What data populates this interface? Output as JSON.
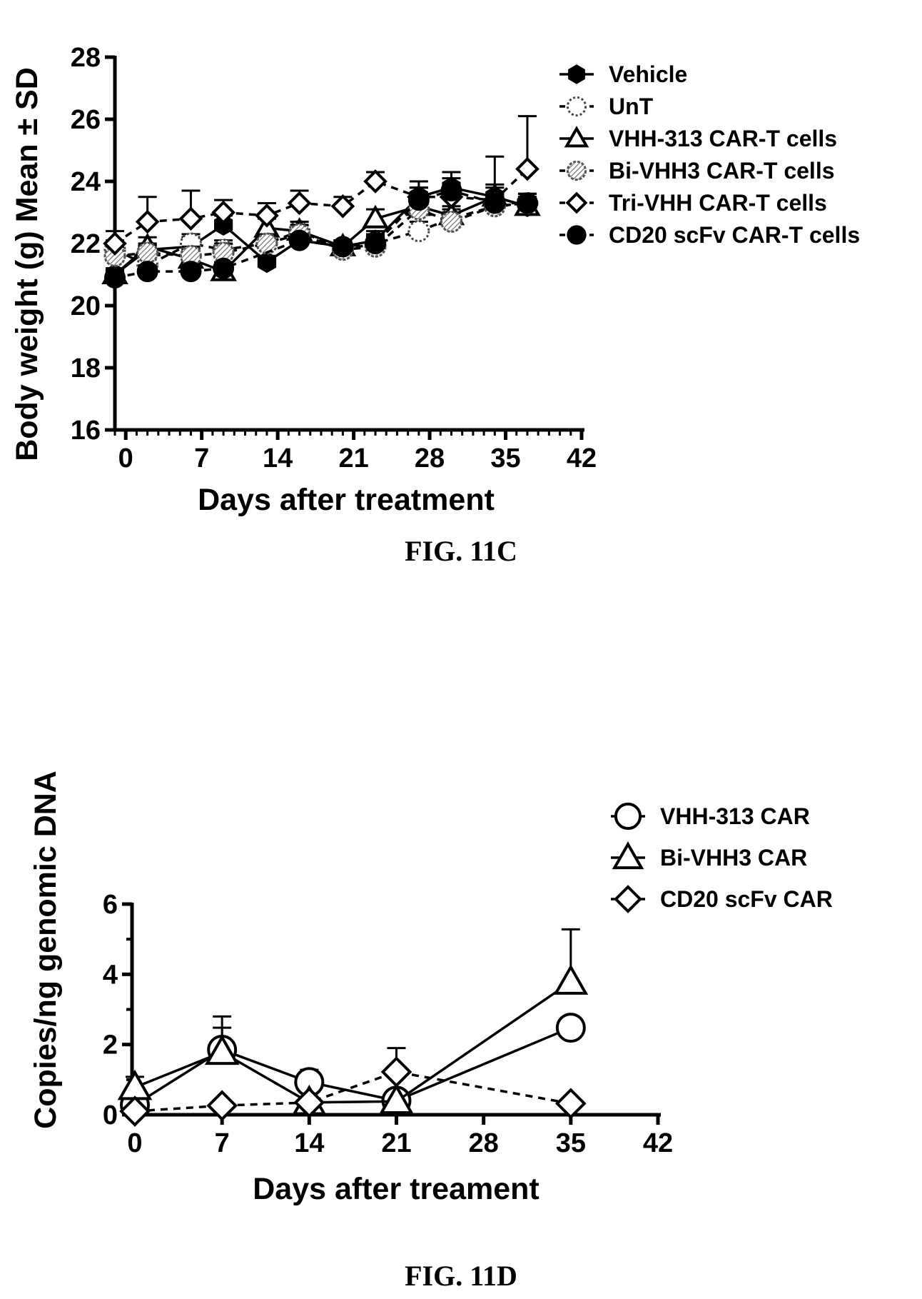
{
  "chart_data": [
    {
      "type": "line",
      "xlabel": "Days after treatment",
      "ylabel": "Body weight (g) Mean ± SD",
      "caption": "FIG. 11C",
      "xlim": [
        -1,
        42
      ],
      "ylim": [
        16,
        28
      ],
      "xticks": [
        "0",
        "7",
        "14",
        "21",
        "28",
        "35",
        "42"
      ],
      "yticks": [
        "16",
        "18",
        "20",
        "22",
        "24",
        "26",
        "28"
      ],
      "legend_position": "top-right",
      "series": [
        {
          "name": "Vehicle",
          "marker": "hexagon-filled",
          "dash": false,
          "x": [
            -1,
            2,
            6,
            9,
            13,
            16,
            20,
            23,
            27,
            30,
            34,
            37
          ],
          "y": [
            21.0,
            21.8,
            21.9,
            22.6,
            21.4,
            22.1,
            21.9,
            22.1,
            23.5,
            23.8,
            23.5,
            23.2
          ],
          "err": [
            0.2,
            0.2,
            0.3,
            0.3,
            0.2,
            0.2,
            0.2,
            0.3,
            0.3,
            0.5,
            0.3,
            0.3
          ]
        },
        {
          "name": "UnT",
          "marker": "circle-dotted",
          "dash": true,
          "x": [
            -1,
            2,
            6,
            9,
            13,
            16,
            20,
            23,
            27,
            30,
            34,
            37
          ],
          "y": [
            21.8,
            21.3,
            22.0,
            21.8,
            22.0,
            22.4,
            21.8,
            22.0,
            22.4,
            22.8,
            23.2,
            23.3
          ],
          "err": [
            0.3,
            0.3,
            0.3,
            0.3,
            0.3,
            0.3,
            0.3,
            0.3,
            0.3,
            0.3,
            0.3,
            0.3
          ]
        },
        {
          "name": "VHH-313 CAR-T cells",
          "marker": "triangle-open",
          "dash": false,
          "x": [
            -1,
            2,
            6,
            9,
            13,
            16,
            20,
            23,
            27,
            30,
            34,
            37
          ],
          "y": [
            21.0,
            21.9,
            21.5,
            21.1,
            22.5,
            22.4,
            21.9,
            22.8,
            23.2,
            22.9,
            23.5,
            23.2
          ],
          "err": [
            0.2,
            0.3,
            0.3,
            0.3,
            0.3,
            0.3,
            0.2,
            0.3,
            0.4,
            0.3,
            0.4,
            0.3
          ]
        },
        {
          "name": "Bi-VHH3 CAR-T cells",
          "marker": "circle-hatched",
          "dash": true,
          "x": [
            -1,
            2,
            6,
            9,
            13,
            16,
            20,
            23,
            27,
            30,
            34,
            37
          ],
          "y": [
            21.6,
            21.7,
            21.6,
            21.7,
            22.0,
            22.3,
            21.8,
            21.9,
            23.1,
            22.7,
            23.2,
            23.3
          ],
          "err": [
            0.3,
            0.3,
            0.3,
            0.3,
            0.3,
            0.3,
            0.3,
            0.3,
            0.3,
            0.3,
            0.3,
            0.3
          ]
        },
        {
          "name": "Tri-VHH CAR-T cells",
          "marker": "diamond-open",
          "dash": true,
          "x": [
            -1,
            2,
            6,
            9,
            13,
            16,
            20,
            23,
            27,
            30,
            34,
            37
          ],
          "y": [
            22.0,
            22.7,
            22.8,
            23.0,
            22.9,
            23.3,
            23.2,
            24.0,
            23.5,
            23.5,
            23.4,
            24.4
          ],
          "err": [
            0.4,
            0.8,
            0.9,
            0.4,
            0.4,
            0.4,
            0.3,
            0.3,
            0.5,
            0.4,
            1.4,
            1.7
          ]
        },
        {
          "name": "CD20 scFv CAR-T cells",
          "marker": "circle-filled",
          "dash": true,
          "x": [
            -1,
            2,
            6,
            9,
            16,
            20,
            23,
            27,
            30,
            34,
            37
          ],
          "y": [
            20.9,
            21.1,
            21.1,
            21.2,
            22.1,
            21.9,
            22.0,
            23.4,
            23.7,
            23.3,
            23.3
          ],
          "err": [
            0.2,
            0.2,
            0.2,
            0.2,
            0.2,
            0.2,
            0.3,
            0.4,
            0.4,
            0.3,
            0.3
          ]
        }
      ]
    },
    {
      "type": "line",
      "xlabel": "Days after treament",
      "ylabel": "Copies/ng genomic DNA",
      "caption": "FIG. 11D",
      "xlim": [
        0,
        42
      ],
      "ylim": [
        0,
        6
      ],
      "xticks": [
        "0",
        "7",
        "14",
        "21",
        "28",
        "35",
        "42"
      ],
      "yticks": [
        "0",
        "2",
        "4",
        "6"
      ],
      "legend_position": "top-right",
      "series": [
        {
          "name": "VHH-313 CAR",
          "marker": "circle-open",
          "dash": false,
          "x": [
            0,
            7,
            14,
            21,
            35
          ],
          "y": [
            0.28,
            1.85,
            0.93,
            0.4,
            2.48
          ],
          "err": [
            0,
            0.95,
            0.35,
            0,
            0
          ]
        },
        {
          "name": "Bi-VHH3 CAR",
          "marker": "triangle-open",
          "dash": false,
          "x": [
            0,
            7,
            14,
            21,
            35
          ],
          "y": [
            0.78,
            1.78,
            0.35,
            0.38,
            3.78
          ],
          "err": [
            0.3,
            0.7,
            0,
            0,
            1.5
          ]
        },
        {
          "name": "CD20 scFv CAR",
          "marker": "diamond-open",
          "dash": true,
          "x": [
            0,
            7,
            14,
            21,
            35
          ],
          "y": [
            0.1,
            0.26,
            0.35,
            1.22,
            0.32
          ],
          "err": [
            0,
            0,
            0,
            0.68,
            0
          ]
        }
      ]
    }
  ]
}
